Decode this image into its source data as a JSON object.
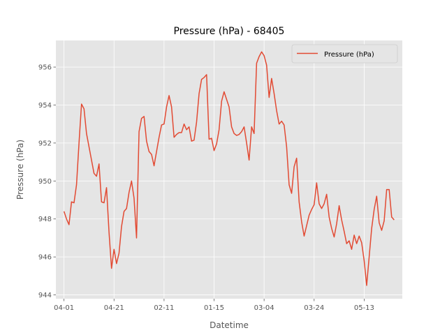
{
  "chart_data": {
    "type": "line",
    "title": "Pressure (hPa) - 68405",
    "xlabel": "Datetime",
    "ylabel": "Pressure (hPa)",
    "legend": {
      "placement": "top-right",
      "entries": [
        "Pressure (hPa)"
      ]
    },
    "grid": true,
    "colors": {
      "series": "#E24A33",
      "plot_background": "#E5E5E5",
      "grid": "#FFFFFF"
    },
    "ylim": [
      943.8,
      957.4
    ],
    "yticks": [
      944,
      946,
      948,
      950,
      952,
      954,
      956
    ],
    "xticks": [
      {
        "index": 0,
        "label": "04-01"
      },
      {
        "index": 20,
        "label": "04-21"
      },
      {
        "index": 40,
        "label": "02-11"
      },
      {
        "index": 60,
        "label": "01-15"
      },
      {
        "index": 80,
        "label": "03-04"
      },
      {
        "index": 100,
        "label": "03-24"
      },
      {
        "index": 120,
        "label": "05-13"
      }
    ],
    "series": [
      {
        "name": "Pressure (hPa)",
        "values": [
          948.4,
          948.0,
          947.7,
          948.9,
          948.85,
          949.8,
          952.0,
          954.05,
          953.8,
          952.5,
          951.8,
          951.1,
          950.4,
          950.25,
          950.9,
          948.9,
          948.85,
          949.65,
          947.3,
          945.4,
          946.4,
          945.65,
          946.2,
          947.6,
          948.4,
          948.55,
          949.4,
          950.0,
          949.1,
          947.0,
          952.6,
          953.3,
          953.4,
          952.1,
          951.55,
          951.4,
          950.8,
          951.55,
          952.3,
          952.95,
          953.0,
          953.9,
          954.5,
          953.9,
          952.3,
          952.45,
          952.55,
          952.55,
          953.0,
          952.7,
          952.85,
          952.1,
          952.15,
          953.1,
          954.6,
          955.35,
          955.45,
          955.6,
          952.2,
          952.25,
          951.6,
          951.95,
          952.7,
          954.2,
          954.7,
          954.3,
          953.9,
          952.85,
          952.5,
          952.4,
          952.45,
          952.6,
          952.85,
          952.0,
          951.1,
          952.85,
          952.5,
          956.2,
          956.55,
          956.8,
          956.6,
          956.1,
          954.4,
          955.4,
          954.6,
          953.7,
          953.0,
          953.15,
          952.95,
          951.8,
          949.8,
          949.35,
          950.75,
          951.2,
          948.9,
          947.85,
          947.1,
          947.65,
          948.2,
          948.5,
          948.75,
          949.9,
          948.8,
          948.55,
          948.8,
          949.3,
          948.1,
          947.5,
          947.05,
          947.75,
          948.7,
          947.95,
          947.35,
          946.7,
          946.85,
          946.4,
          947.15,
          946.7,
          947.1,
          946.75,
          945.8,
          944.5,
          946.0,
          947.5,
          948.5,
          949.2,
          947.8,
          947.4,
          947.9,
          949.55,
          949.55,
          948.1,
          947.95
        ]
      }
    ]
  }
}
